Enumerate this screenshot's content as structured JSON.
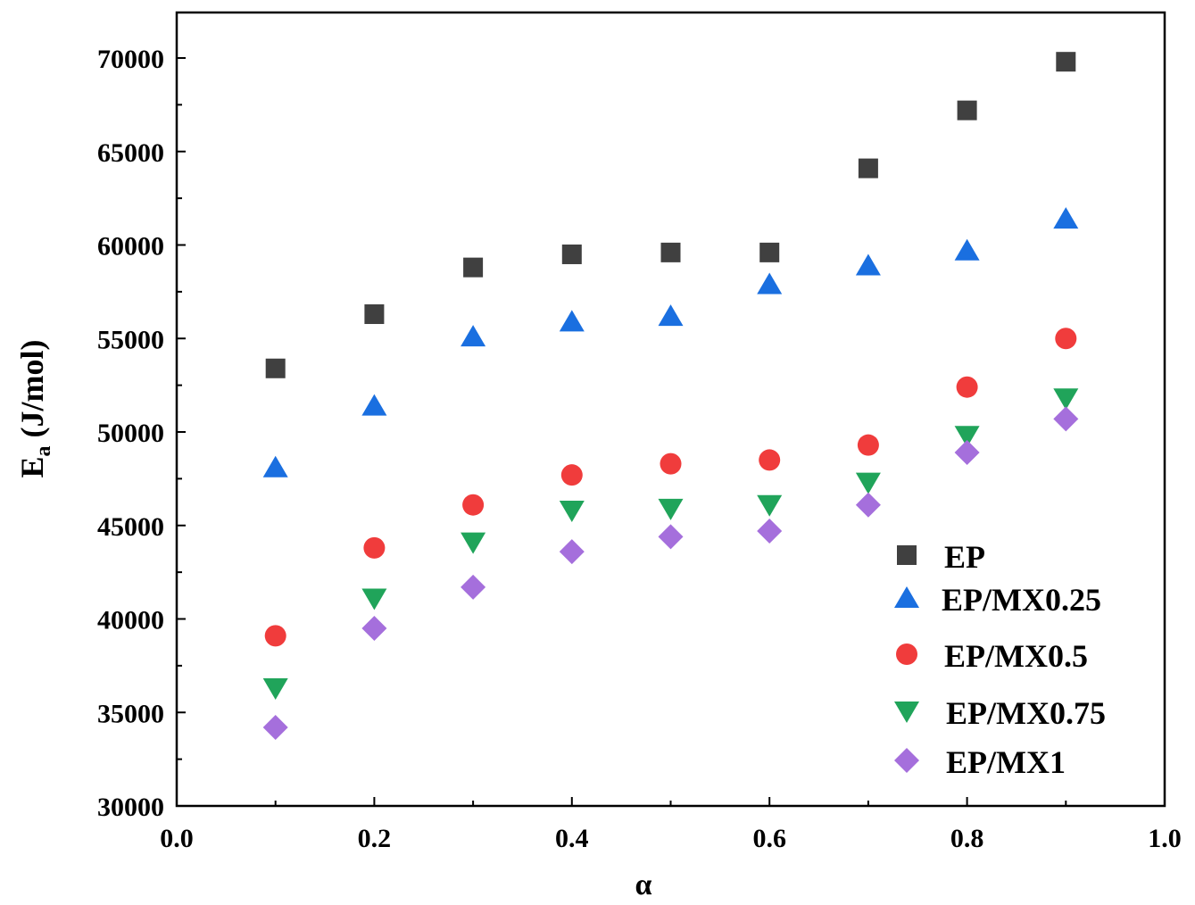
{
  "chart_data": {
    "type": "scatter",
    "title": "",
    "xlabel": "α",
    "ylabel_main": "E",
    "ylabel_sub": "a",
    "ylabel_unit": " (J/mol)",
    "xlim": [
      0.0,
      1.0
    ],
    "ylim": [
      30000,
      72000
    ],
    "xticks": [
      "0.0",
      "0.2",
      "0.4",
      "0.6",
      "0.8",
      "1.0"
    ],
    "yticks": [
      "30000",
      "35000",
      "40000",
      "45000",
      "50000",
      "55000",
      "60000",
      "65000",
      "70000"
    ],
    "x": [
      0.1,
      0.2,
      0.3,
      0.4,
      0.5,
      0.6,
      0.7,
      0.8,
      0.9
    ],
    "legend_position": "bottom-right",
    "series": [
      {
        "name": "EP",
        "marker": "square",
        "color": "#404040",
        "values": [
          53400,
          56300,
          58800,
          59500,
          59600,
          59600,
          64100,
          67200,
          69800
        ]
      },
      {
        "name": "EP/MX0.25",
        "marker": "triangle-up",
        "color": "#1a6fe0",
        "values": [
          48100,
          51400,
          55100,
          55900,
          56200,
          57900,
          58900,
          59700,
          61400
        ]
      },
      {
        "name": "EP/MX0.5",
        "marker": "circle",
        "color": "#f03c3c",
        "values": [
          39100,
          43800,
          46100,
          47700,
          48300,
          48500,
          49300,
          52400,
          55000
        ]
      },
      {
        "name": "EP/MX0.75",
        "marker": "triangle-down",
        "color": "#20a45a",
        "values": [
          36300,
          41100,
          44100,
          45800,
          45900,
          46100,
          47300,
          49800,
          51800
        ]
      },
      {
        "name": "EP/MX1",
        "marker": "diamond",
        "color": "#a56fdc",
        "values": [
          34200,
          39500,
          41700,
          43600,
          44400,
          44700,
          46100,
          48900,
          50700
        ]
      }
    ]
  }
}
